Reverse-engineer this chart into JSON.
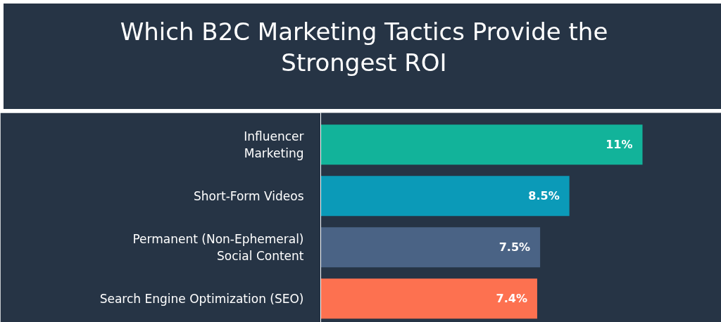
{
  "chart_data": {
    "type": "bar",
    "orientation": "horizontal",
    "title": "Which B2C Marketing Tactics Provide the\nStrongest ROI",
    "categories": [
      "Influencer\nMarketing",
      "Short-Form Videos",
      "Permanent (Non-Ephemeral)\nSocial Content",
      "Search Engine Optimization (SEO)"
    ],
    "values": [
      11,
      8.5,
      7.5,
      7.4
    ],
    "colors": [
      "#12b39a",
      "#0b9ab8",
      "#4a6385",
      "#fd7150"
    ],
    "value_labels": [
      "11%",
      "8.5%",
      "7.5%",
      "7.4%"
    ],
    "grid": false
  }
}
